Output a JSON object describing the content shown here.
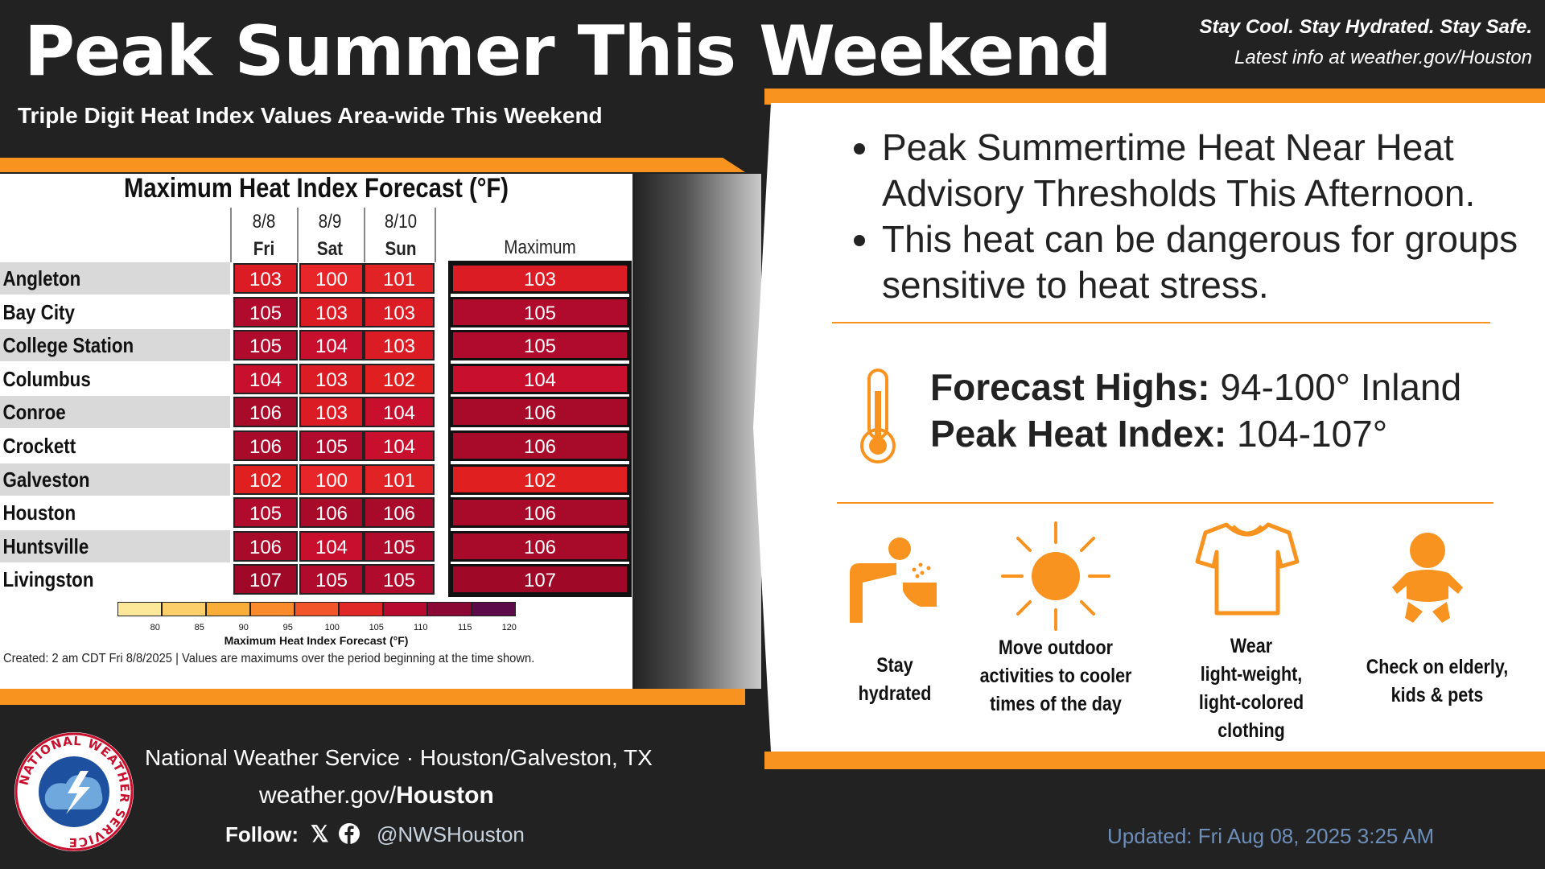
{
  "header": {
    "title": "Peak Summer This Weekend",
    "subtitle": "Triple Digit Heat Index Values Area-wide This Weekend",
    "tagline": "Stay Cool. Stay Hydrated. Stay Safe.",
    "latest": "Latest info at weather.gov/Houston"
  },
  "table": {
    "title": "Maximum Heat Index Forecast (°F)",
    "columns": [
      {
        "date": "8/8",
        "day": "Fri"
      },
      {
        "date": "8/9",
        "day": "Sat"
      },
      {
        "date": "8/10",
        "day": "Sun"
      }
    ],
    "max_header": "Maximum",
    "rows": [
      {
        "name": "Angleton",
        "values": [
          "103",
          "100",
          "101"
        ],
        "max": "103"
      },
      {
        "name": "Bay City",
        "values": [
          "105",
          "103",
          "103"
        ],
        "max": "105"
      },
      {
        "name": "College Station",
        "values": [
          "105",
          "104",
          "103"
        ],
        "max": "105"
      },
      {
        "name": "Columbus",
        "values": [
          "104",
          "103",
          "102"
        ],
        "max": "104"
      },
      {
        "name": "Conroe",
        "values": [
          "106",
          "103",
          "104"
        ],
        "max": "106"
      },
      {
        "name": "Crockett",
        "values": [
          "106",
          "105",
          "104"
        ],
        "max": "106"
      },
      {
        "name": "Galveston",
        "values": [
          "102",
          "100",
          "101"
        ],
        "max": "102"
      },
      {
        "name": "Houston",
        "values": [
          "105",
          "106",
          "106"
        ],
        "max": "106"
      },
      {
        "name": "Huntsville",
        "values": [
          "106",
          "104",
          "105"
        ],
        "max": "106"
      },
      {
        "name": "Livingston",
        "values": [
          "107",
          "105",
          "105"
        ],
        "max": "107"
      }
    ],
    "scale_ticks": [
      "80",
      "85",
      "90",
      "95",
      "100",
      "105",
      "110",
      "115",
      "120"
    ],
    "scale_label": "Maximum Heat Index Forecast (°F)",
    "created": "Created: 2 am CDT Fri 8/8/2025  |  Values are maximums over the period beginning at the time shown."
  },
  "bullets": [
    "Peak Summertime Heat Near Heat Advisory Thresholds This Afternoon.",
    "This heat can be dangerous for groups sensitive to heat stress."
  ],
  "forecast": {
    "highs_label": "Forecast Highs:",
    "highs_value": "94-100° Inland",
    "heat_label": "Peak Heat Index:",
    "heat_value": "104-107°"
  },
  "tips": [
    {
      "icon": "drinking-fountain-icon",
      "lines": [
        "Stay",
        "hydrated"
      ]
    },
    {
      "icon": "sun-icon",
      "lines": [
        "Move outdoor",
        "activities to cooler",
        "times of the day"
      ]
    },
    {
      "icon": "tshirt-icon",
      "lines": [
        "Wear",
        "light-weight,",
        "light-colored",
        "clothing"
      ]
    },
    {
      "icon": "baby-icon",
      "lines": [
        "Check on elderly,",
        "kids & pets"
      ]
    }
  ],
  "footer": {
    "org": "National Weather Service · Houston/Galveston, TX",
    "site_prefix": "weather.gov/",
    "site_bold": "Houston",
    "follow": "Follow:",
    "handle": "@NWSHouston",
    "updated": "Updated: Fri Aug 08, 2025 3:25 AM",
    "logo_text": "NATIONAL WEATHER SERVICE"
  },
  "colors": {
    "accent": "#f7931e",
    "heat_102": "#e02020",
    "heat_103": "#dc1c24",
    "heat_104": "#c8102e",
    "heat_105": "#b00a2c",
    "heat_106": "#a80a2a",
    "heat_107": "#a00828",
    "heat_100": "#e8262a",
    "heat_101": "#e22326"
  }
}
